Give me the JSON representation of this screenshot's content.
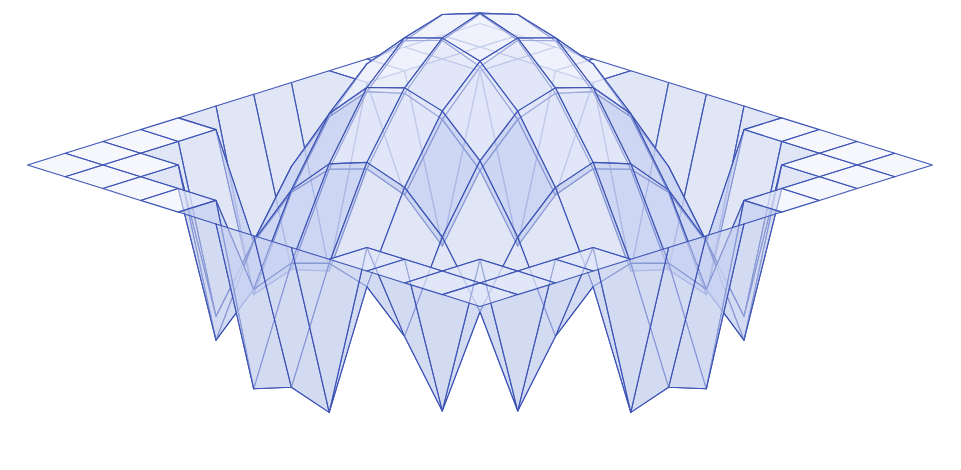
{
  "chart_data": {
    "type": "surface",
    "color": "#3d54b5",
    "tick_labels": false,
    "x": [
      -6,
      -5,
      -4,
      -3,
      -2,
      -1,
      0,
      1,
      2,
      3,
      4,
      5,
      6
    ],
    "y": [
      -6,
      -5,
      -4,
      -3,
      -2,
      -1,
      0,
      1,
      2,
      3,
      4,
      5,
      6
    ],
    "xlim": [
      -6,
      6
    ],
    "ylim": [
      -6,
      6
    ],
    "zlim": [
      -1,
      1
    ],
    "z": [
      [
        0,
        0,
        0,
        0,
        0,
        0,
        0,
        0,
        0,
        0,
        0,
        0,
        0
      ],
      [
        0,
        0,
        0,
        0,
        0,
        -0.93,
        -0.86,
        -0.93,
        0,
        0,
        0,
        0,
        0
      ],
      [
        0,
        0,
        0,
        -0.86,
        -0.53,
        -0.33,
        -0.27,
        -0.33,
        -0.53,
        -0.86,
        0,
        0,
        0
      ],
      [
        0,
        0,
        -0.86,
        -0.4,
        -0.07,
        0.13,
        0.2,
        0.13,
        -0.07,
        -0.4,
        -0.86,
        0,
        0
      ],
      [
        0,
        0,
        -0.53,
        -0.07,
        0.27,
        0.47,
        0.53,
        0.47,
        0.27,
        -0.07,
        -0.53,
        0,
        0
      ],
      [
        0,
        -0.93,
        -0.33,
        0.13,
        0.47,
        0.67,
        0.73,
        0.67,
        0.47,
        0.13,
        -0.33,
        -0.93,
        0
      ],
      [
        0,
        -0.86,
        -0.27,
        0.2,
        0.53,
        0.73,
        0.8,
        0.73,
        0.53,
        0.2,
        -0.27,
        -0.86,
        0
      ],
      [
        0,
        -0.93,
        -0.33,
        0.13,
        0.47,
        0.67,
        0.73,
        0.67,
        0.47,
        0.13,
        -0.33,
        -0.93,
        0
      ],
      [
        0,
        0,
        -0.53,
        -0.07,
        0.27,
        0.47,
        0.53,
        0.47,
        0.27,
        -0.07,
        -0.53,
        0,
        0
      ],
      [
        0,
        0,
        -0.86,
        -0.4,
        -0.07,
        0.13,
        0.2,
        0.13,
        -0.07,
        -0.4,
        -0.86,
        0,
        0
      ],
      [
        0,
        0,
        0,
        -0.86,
        -0.53,
        -0.33,
        -0.27,
        -0.33,
        -0.53,
        -0.86,
        0,
        0,
        0
      ],
      [
        0,
        0,
        0,
        0,
        0,
        -0.93,
        -0.86,
        -0.93,
        0,
        0,
        0,
        0,
        0
      ],
      [
        0,
        0,
        0,
        0,
        0,
        0,
        0,
        0,
        0,
        0,
        0,
        0,
        0
      ]
    ]
  }
}
